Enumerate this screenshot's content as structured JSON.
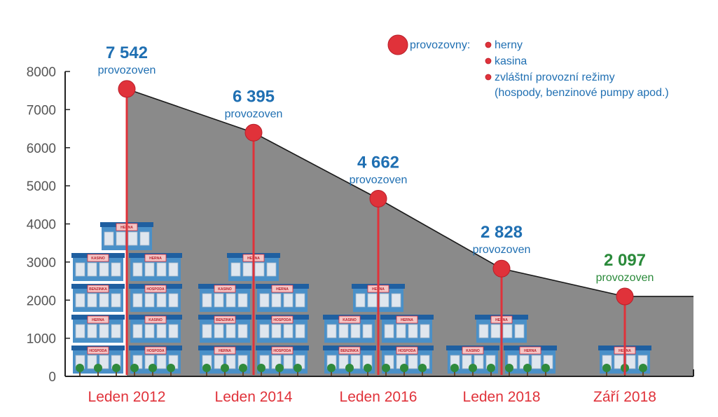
{
  "chart_data": {
    "type": "area",
    "title": "",
    "xlabel": "",
    "ylabel": "",
    "ylim": [
      0,
      8000
    ],
    "yticks": [
      0,
      1000,
      2000,
      3000,
      4000,
      5000,
      6000,
      7000,
      8000
    ],
    "categories": [
      "Leden 2012",
      "Leden 2014",
      "Leden 2016",
      "Leden 2018",
      "Září 2018"
    ],
    "values": [
      7542,
      6395,
      4662,
      2828,
      2097
    ],
    "value_labels": [
      "7 542",
      "6 395",
      "4 662",
      "2 828",
      "2 097"
    ],
    "unit_label": "provozoven",
    "legend": {
      "title": "provozovny:",
      "items": [
        "herny",
        "kasina",
        "zvláštní provozní režimy",
        "(hospody, benzinové pumpy apod.)"
      ]
    },
    "building_rows": [
      [
        [
          "HOSPODA",
          "HOSPODA"
        ],
        [
          "HERNA",
          "KASINO"
        ],
        [
          "BENZINKA",
          "HOSPODA"
        ],
        [
          "KASINO",
          "HERNA"
        ],
        [
          "HERNA"
        ]
      ],
      [
        [
          "HERNA",
          "HOSPODA"
        ],
        [
          "BENZINKA",
          "HOSPODA"
        ],
        [
          "KASINO",
          "HERNA"
        ],
        [
          "HERNA"
        ]
      ],
      [
        [
          "BENZINKA",
          "HOSPODA"
        ],
        [
          "KASINO",
          "HERNA"
        ],
        [
          "HERNA"
        ]
      ],
      [
        [
          "KASINO",
          "HERNA"
        ],
        [
          "HERNA"
        ]
      ],
      [
        [
          "HERNA"
        ]
      ]
    ]
  },
  "colors": {
    "area": "#8a8a8a",
    "area_stroke": "#1a1a1a",
    "marker": "#e0323a",
    "value_blue": "#1f6fb2",
    "value_green": "#2a8a3a",
    "axis": "#222222",
    "building": "#4a90c8",
    "roof": "#1f5fa0"
  }
}
